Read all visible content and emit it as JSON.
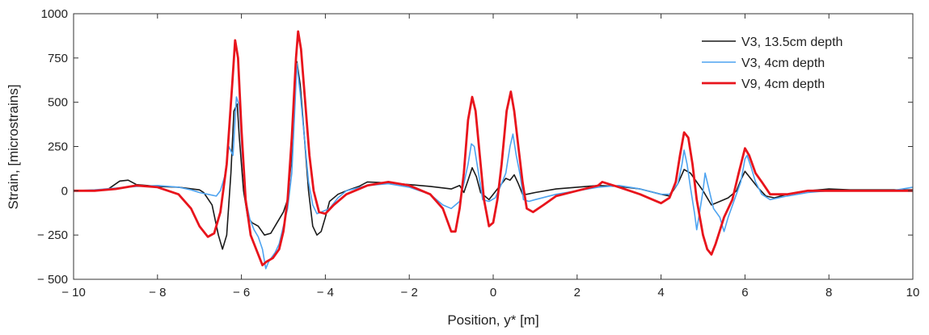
{
  "chart_data": {
    "type": "line",
    "xlabel": "Position, y* [m]",
    "ylabel": "Strain, [microstrains]",
    "xlim": [
      -10,
      10
    ],
    "ylim": [
      -500,
      1000
    ],
    "xticks": [
      -10,
      -8,
      -6,
      -4,
      -2,
      0,
      2,
      4,
      6,
      8,
      10
    ],
    "yticks": [
      -500,
      -250,
      0,
      250,
      500,
      750,
      1000
    ],
    "xtick_labels": [
      "− 10",
      "− 8",
      "− 6",
      "− 4",
      "− 2",
      "0",
      "2",
      "4",
      "6",
      "8",
      "10"
    ],
    "ytick_labels": [
      "− 500",
      "− 250",
      "0",
      "250",
      "500",
      "750",
      "1000"
    ],
    "grid": false,
    "legend_position": "top-right",
    "series": [
      {
        "name": "V3, 13.5cm depth",
        "color": "#1a1a1a",
        "points": [
          [
            -10,
            0
          ],
          [
            -9.2,
            5
          ],
          [
            -8.9,
            55
          ],
          [
            -8.7,
            60
          ],
          [
            -8.5,
            35
          ],
          [
            -8,
            25
          ],
          [
            -7.5,
            20
          ],
          [
            -7,
            5
          ],
          [
            -6.9,
            -10
          ],
          [
            -6.7,
            -80
          ],
          [
            -6.55,
            -250
          ],
          [
            -6.45,
            -330
          ],
          [
            -6.35,
            -250
          ],
          [
            -6.25,
            100
          ],
          [
            -6.18,
            450
          ],
          [
            -6.1,
            490
          ],
          [
            -6.05,
            300
          ],
          [
            -5.95,
            0
          ],
          [
            -5.85,
            -150
          ],
          [
            -5.75,
            -180
          ],
          [
            -5.6,
            -200
          ],
          [
            -5.45,
            -250
          ],
          [
            -5.3,
            -240
          ],
          [
            -5.15,
            -180
          ],
          [
            -5.0,
            -120
          ],
          [
            -4.9,
            -50
          ],
          [
            -4.8,
            200
          ],
          [
            -4.72,
            600
          ],
          [
            -4.68,
            730
          ],
          [
            -4.6,
            600
          ],
          [
            -4.5,
            300
          ],
          [
            -4.4,
            0
          ],
          [
            -4.3,
            -200
          ],
          [
            -4.2,
            -250
          ],
          [
            -4.1,
            -230
          ],
          [
            -4.0,
            -150
          ],
          [
            -3.9,
            -60
          ],
          [
            -3.7,
            -20
          ],
          [
            -3.5,
            0
          ],
          [
            -3.2,
            25
          ],
          [
            -3,
            50
          ],
          [
            -2.5,
            45
          ],
          [
            -2,
            35
          ],
          [
            -1.5,
            25
          ],
          [
            -1,
            10
          ],
          [
            -0.8,
            30
          ],
          [
            -0.7,
            -10
          ],
          [
            -0.6,
            60
          ],
          [
            -0.5,
            130
          ],
          [
            -0.4,
            80
          ],
          [
            -0.3,
            -10
          ],
          [
            -0.2,
            -30
          ],
          [
            -0.1,
            -50
          ],
          [
            0,
            -20
          ],
          [
            0.1,
            10
          ],
          [
            0.2,
            40
          ],
          [
            0.3,
            70
          ],
          [
            0.4,
            60
          ],
          [
            0.5,
            90
          ],
          [
            0.6,
            40
          ],
          [
            0.7,
            -20
          ],
          [
            0.8,
            -20
          ],
          [
            1,
            -10
          ],
          [
            1.5,
            10
          ],
          [
            2,
            20
          ],
          [
            2.5,
            30
          ],
          [
            3,
            25
          ],
          [
            3.5,
            10
          ],
          [
            4,
            -20
          ],
          [
            4.2,
            -30
          ],
          [
            4.4,
            40
          ],
          [
            4.55,
            120
          ],
          [
            4.7,
            100
          ],
          [
            4.85,
            50
          ],
          [
            5.0,
            0
          ],
          [
            5.2,
            -80
          ],
          [
            5.4,
            -60
          ],
          [
            5.6,
            -40
          ],
          [
            5.8,
            0
          ],
          [
            5.9,
            60
          ],
          [
            6.0,
            110
          ],
          [
            6.1,
            80
          ],
          [
            6.3,
            20
          ],
          [
            6.5,
            -30
          ],
          [
            6.7,
            -40
          ],
          [
            7,
            -20
          ],
          [
            7.5,
            0
          ],
          [
            8,
            10
          ],
          [
            8.5,
            5
          ],
          [
            9,
            5
          ],
          [
            10,
            5
          ]
        ]
      },
      {
        "name": "V3, 4cm depth",
        "color": "#4da3f0",
        "points": [
          [
            -10,
            0
          ],
          [
            -9.5,
            5
          ],
          [
            -9,
            15
          ],
          [
            -8.5,
            25
          ],
          [
            -8,
            30
          ],
          [
            -7.5,
            20
          ],
          [
            -7.2,
            5
          ],
          [
            -7,
            -10
          ],
          [
            -6.8,
            -20
          ],
          [
            -6.6,
            -30
          ],
          [
            -6.5,
            0
          ],
          [
            -6.4,
            80
          ],
          [
            -6.3,
            250
          ],
          [
            -6.2,
            200
          ],
          [
            -6.12,
            530
          ],
          [
            -6.05,
            480
          ],
          [
            -5.98,
            200
          ],
          [
            -5.9,
            -50
          ],
          [
            -5.8,
            -160
          ],
          [
            -5.7,
            -220
          ],
          [
            -5.6,
            -260
          ],
          [
            -5.5,
            -330
          ],
          [
            -5.42,
            -440
          ],
          [
            -5.35,
            -400
          ],
          [
            -5.2,
            -350
          ],
          [
            -5.1,
            -300
          ],
          [
            -5.0,
            -200
          ],
          [
            -4.9,
            -100
          ],
          [
            -4.8,
            100
          ],
          [
            -4.72,
            500
          ],
          [
            -4.68,
            720
          ],
          [
            -4.6,
            550
          ],
          [
            -4.5,
            300
          ],
          [
            -4.4,
            50
          ],
          [
            -4.3,
            -80
          ],
          [
            -4.2,
            -130
          ],
          [
            -4.1,
            -120
          ],
          [
            -3.9,
            -100
          ],
          [
            -3.7,
            -40
          ],
          [
            -3.5,
            0
          ],
          [
            -3,
            30
          ],
          [
            -2.5,
            40
          ],
          [
            -2,
            20
          ],
          [
            -1.5,
            -20
          ],
          [
            -1.2,
            -80
          ],
          [
            -1,
            -100
          ],
          [
            -0.8,
            -60
          ],
          [
            -0.7,
            40
          ],
          [
            -0.6,
            150
          ],
          [
            -0.52,
            265
          ],
          [
            -0.45,
            250
          ],
          [
            -0.35,
            100
          ],
          [
            -0.25,
            -50
          ],
          [
            -0.1,
            -60
          ],
          [
            0.05,
            -40
          ],
          [
            0.2,
            40
          ],
          [
            0.3,
            100
          ],
          [
            0.4,
            250
          ],
          [
            0.47,
            320
          ],
          [
            0.55,
            200
          ],
          [
            0.65,
            80
          ],
          [
            0.72,
            -50
          ],
          [
            0.85,
            -60
          ],
          [
            1,
            -50
          ],
          [
            1.5,
            -20
          ],
          [
            2,
            0
          ],
          [
            2.5,
            20
          ],
          [
            3,
            30
          ],
          [
            3.5,
            10
          ],
          [
            4,
            -20
          ],
          [
            4.2,
            -20
          ],
          [
            4.4,
            40
          ],
          [
            4.5,
            150
          ],
          [
            4.55,
            230
          ],
          [
            4.62,
            150
          ],
          [
            4.7,
            20
          ],
          [
            4.8,
            -130
          ],
          [
            4.85,
            -220
          ],
          [
            4.9,
            -150
          ],
          [
            5.0,
            0
          ],
          [
            5.05,
            100
          ],
          [
            5.15,
            0
          ],
          [
            5.25,
            -100
          ],
          [
            5.4,
            -150
          ],
          [
            5.5,
            -230
          ],
          [
            5.6,
            -150
          ],
          [
            5.75,
            -50
          ],
          [
            5.9,
            50
          ],
          [
            6.0,
            180
          ],
          [
            6.05,
            200
          ],
          [
            6.15,
            130
          ],
          [
            6.25,
            50
          ],
          [
            6.4,
            -20
          ],
          [
            6.6,
            -50
          ],
          [
            7,
            -30
          ],
          [
            7.5,
            -10
          ],
          [
            8,
            0
          ],
          [
            8.5,
            0
          ],
          [
            9,
            0
          ],
          [
            9.5,
            0
          ],
          [
            10,
            20
          ]
        ]
      },
      {
        "name": "V9, 4cm depth",
        "color": "#e8141c",
        "points": [
          [
            -10,
            0
          ],
          [
            -9.5,
            0
          ],
          [
            -9,
            10
          ],
          [
            -8.5,
            30
          ],
          [
            -8,
            20
          ],
          [
            -7.5,
            -20
          ],
          [
            -7.2,
            -100
          ],
          [
            -7.0,
            -200
          ],
          [
            -6.8,
            -260
          ],
          [
            -6.65,
            -240
          ],
          [
            -6.5,
            -120
          ],
          [
            -6.35,
            150
          ],
          [
            -6.22,
            600
          ],
          [
            -6.15,
            850
          ],
          [
            -6.08,
            750
          ],
          [
            -6.0,
            350
          ],
          [
            -5.9,
            -50
          ],
          [
            -5.78,
            -250
          ],
          [
            -5.6,
            -360
          ],
          [
            -5.5,
            -420
          ],
          [
            -5.4,
            -400
          ],
          [
            -5.25,
            -380
          ],
          [
            -5.1,
            -330
          ],
          [
            -5.0,
            -230
          ],
          [
            -4.9,
            -50
          ],
          [
            -4.8,
            300
          ],
          [
            -4.7,
            750
          ],
          [
            -4.65,
            900
          ],
          [
            -4.58,
            800
          ],
          [
            -4.48,
            500
          ],
          [
            -4.38,
            200
          ],
          [
            -4.28,
            0
          ],
          [
            -4.15,
            -120
          ],
          [
            -4.0,
            -130
          ],
          [
            -3.8,
            -80
          ],
          [
            -3.5,
            -20
          ],
          [
            -3,
            30
          ],
          [
            -2.5,
            50
          ],
          [
            -2,
            30
          ],
          [
            -1.5,
            -20
          ],
          [
            -1.2,
            -100
          ],
          [
            -1,
            -230
          ],
          [
            -0.9,
            -230
          ],
          [
            -0.8,
            -100
          ],
          [
            -0.7,
            100
          ],
          [
            -0.6,
            400
          ],
          [
            -0.5,
            530
          ],
          [
            -0.42,
            450
          ],
          [
            -0.32,
            200
          ],
          [
            -0.22,
            -50
          ],
          [
            -0.1,
            -200
          ],
          [
            0,
            -180
          ],
          [
            0.1,
            -50
          ],
          [
            0.2,
            150
          ],
          [
            0.32,
            450
          ],
          [
            0.42,
            560
          ],
          [
            0.5,
            450
          ],
          [
            0.6,
            250
          ],
          [
            0.7,
            50
          ],
          [
            0.8,
            -100
          ],
          [
            0.95,
            -120
          ],
          [
            1.2,
            -80
          ],
          [
            1.5,
            -30
          ],
          [
            2,
            0
          ],
          [
            2.5,
            30
          ],
          [
            2.6,
            50
          ],
          [
            3,
            20
          ],
          [
            3.5,
            -20
          ],
          [
            3.8,
            -50
          ],
          [
            4.0,
            -70
          ],
          [
            4.2,
            -40
          ],
          [
            4.35,
            50
          ],
          [
            4.45,
            200
          ],
          [
            4.55,
            330
          ],
          [
            4.65,
            300
          ],
          [
            4.75,
            150
          ],
          [
            4.85,
            -50
          ],
          [
            5.0,
            -250
          ],
          [
            5.1,
            -330
          ],
          [
            5.2,
            -360
          ],
          [
            5.3,
            -300
          ],
          [
            5.5,
            -150
          ],
          [
            5.7,
            -50
          ],
          [
            5.85,
            100
          ],
          [
            6.0,
            240
          ],
          [
            6.1,
            200
          ],
          [
            6.25,
            100
          ],
          [
            6.4,
            50
          ],
          [
            6.6,
            -20
          ],
          [
            7,
            -20
          ],
          [
            7.5,
            0
          ],
          [
            8,
            0
          ],
          [
            8.5,
            0
          ],
          [
            9,
            0
          ],
          [
            9.5,
            0
          ],
          [
            10,
            0
          ]
        ]
      }
    ]
  }
}
